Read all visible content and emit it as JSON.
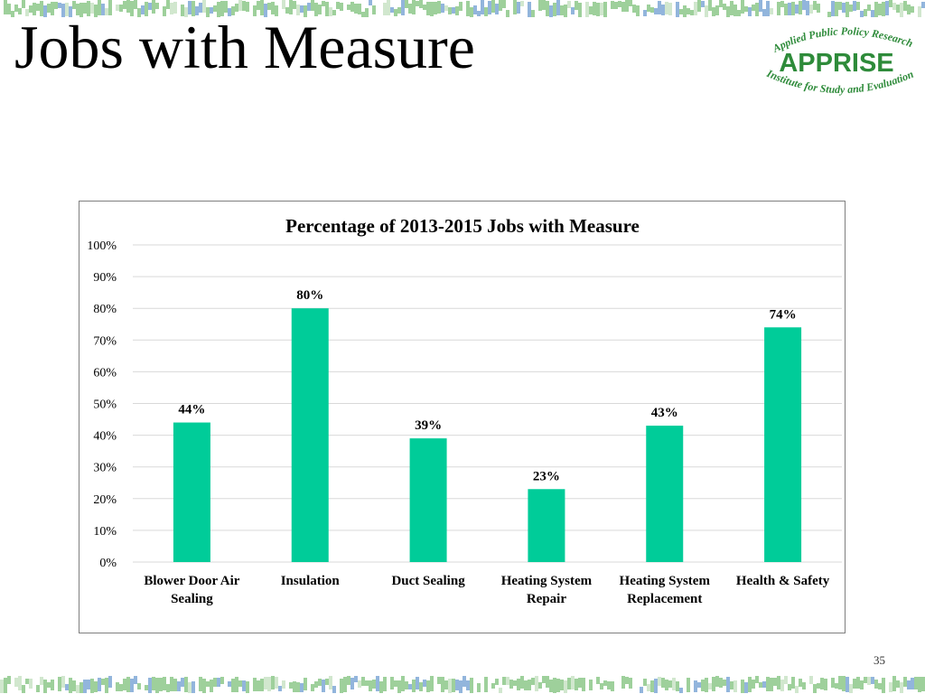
{
  "slide": {
    "title": "Jobs with Measure",
    "page_number": "35"
  },
  "logo": {
    "top_text": "Applied Public Policy Research",
    "main_text": "APPRISE",
    "bottom_text": "Institute for Study and Evaluation",
    "color": "#2e8b3a"
  },
  "colors": {
    "bar": "#00cc99",
    "grid": "#d9d9d9",
    "band_green": "#8dc88a",
    "band_blue": "#7fa8d6"
  },
  "chart_data": {
    "type": "bar",
    "title": "Percentage of 2013-2015 Jobs with Measure",
    "categories": [
      [
        "Blower Door Air",
        "Sealing"
      ],
      [
        "Insulation"
      ],
      [
        "Duct Sealing"
      ],
      [
        "Heating System",
        "Repair"
      ],
      [
        "Heating System",
        "Replacement"
      ],
      [
        "Health & Safety"
      ]
    ],
    "values": [
      44,
      80,
      39,
      23,
      43,
      74
    ],
    "data_labels": [
      "44%",
      "80%",
      "39%",
      "23%",
      "43%",
      "74%"
    ],
    "ylim": [
      0,
      100
    ],
    "yticks": [
      0,
      10,
      20,
      30,
      40,
      50,
      60,
      70,
      80,
      90,
      100
    ],
    "ytick_labels": [
      "0%",
      "10%",
      "20%",
      "30%",
      "40%",
      "50%",
      "60%",
      "70%",
      "80%",
      "90%",
      "100%"
    ],
    "xlabel": "",
    "ylabel": "",
    "grid": true
  }
}
